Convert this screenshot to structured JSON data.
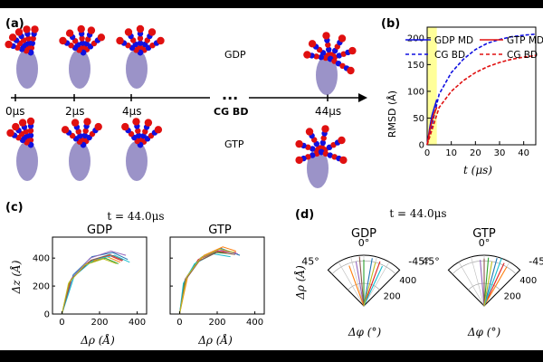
{
  "panel_labels": {
    "a": "(a)",
    "b": "(b)",
    "c": "(c)",
    "d": "(d)"
  },
  "timeline": {
    "ticks": [
      "0μs",
      "2μs",
      "4μs",
      "44μs"
    ],
    "break": "...",
    "break_label": "CG BD",
    "row_labels": [
      "GDP",
      "GTP"
    ]
  },
  "colors": {
    "blue": "#1010e0",
    "red": "#e01010",
    "highlight": "#ffff99"
  },
  "chart_data": [
    {
      "type": "line",
      "ylabel": "RMSD (Å)",
      "xlabel": "t (μs)",
      "xlim": [
        0,
        45
      ],
      "ylim": [
        0,
        220
      ],
      "x_ticks": [
        "0",
        "10",
        "20",
        "30",
        "40"
      ],
      "y_ticks": [
        "0",
        "50",
        "100",
        "150",
        "200"
      ],
      "highlight_x": [
        0,
        4
      ],
      "legend": {
        "row1": [
          "GDP MD",
          "GTP MD"
        ],
        "row2": [
          "CG BD",
          "CG BD"
        ],
        "placement": "top"
      },
      "series": [
        {
          "name": "GDP MD",
          "color": "#1010e0",
          "style": "solid",
          "x": [
            0,
            1,
            2,
            3,
            4
          ],
          "y": [
            0,
            30,
            55,
            70,
            85
          ]
        },
        {
          "name": "CG BD",
          "color": "#1010e0",
          "style": "dashed",
          "x": [
            0,
            5,
            10,
            15,
            20,
            25,
            30,
            35,
            40,
            45
          ],
          "y": [
            0,
            95,
            135,
            160,
            178,
            190,
            197,
            202,
            205,
            207
          ]
        },
        {
          "name": "GTP MD",
          "color": "#e01010",
          "style": "solid",
          "x": [
            0,
            1,
            2,
            3,
            4
          ],
          "y": [
            0,
            25,
            45,
            60,
            70
          ]
        },
        {
          "name": "CG BD",
          "color": "#e01010",
          "style": "dashed",
          "x": [
            0,
            5,
            10,
            15,
            20,
            25,
            30,
            35,
            40,
            45
          ],
          "y": [
            0,
            70,
            100,
            120,
            135,
            146,
            154,
            160,
            164,
            167
          ]
        }
      ]
    },
    {
      "type": "line",
      "title_prefix": "t = 44.0μs",
      "subtitles": [
        "GDP",
        "GTP"
      ],
      "xlabel": "Δρ (Å)",
      "ylabel": "Δz (Å)",
      "xlim": [
        -50,
        450
      ],
      "ylim": [
        0,
        550
      ],
      "x_ticks": [
        "0",
        "200",
        "400"
      ],
      "y_ticks": [
        "0",
        "200",
        "400"
      ],
      "gdp_curves": [
        [
          [
            0,
            0
          ],
          [
            50,
            250
          ],
          [
            150,
            380
          ],
          [
            250,
            420
          ],
          [
            320,
            380
          ]
        ],
        [
          [
            0,
            0
          ],
          [
            60,
            280
          ],
          [
            160,
            410
          ],
          [
            270,
            440
          ],
          [
            350,
            390
          ]
        ],
        [
          [
            0,
            0
          ],
          [
            40,
            230
          ],
          [
            130,
            360
          ],
          [
            230,
            400
          ],
          [
            300,
            360
          ]
        ],
        [
          [
            0,
            0
          ],
          [
            55,
            260
          ],
          [
            150,
            400
          ],
          [
            260,
            450
          ],
          [
            340,
            420
          ]
        ],
        [
          [
            0,
            0
          ],
          [
            45,
            240
          ],
          [
            140,
            370
          ],
          [
            240,
            410
          ],
          [
            310,
            370
          ]
        ],
        [
          [
            0,
            0
          ],
          [
            65,
            270
          ],
          [
            170,
            390
          ],
          [
            280,
            420
          ],
          [
            360,
            370
          ]
        ],
        [
          [
            0,
            0
          ],
          [
            50,
            250
          ],
          [
            155,
            385
          ],
          [
            255,
            425
          ],
          [
            325,
            385
          ]
        ],
        [
          [
            0,
            0
          ],
          [
            35,
            220
          ],
          [
            120,
            350
          ],
          [
            220,
            395
          ],
          [
            290,
            360
          ]
        ]
      ],
      "gtp_curves": [
        [
          [
            0,
            0
          ],
          [
            30,
            250
          ],
          [
            100,
            390
          ],
          [
            200,
            450
          ],
          [
            300,
            440
          ]
        ],
        [
          [
            0,
            0
          ],
          [
            40,
            270
          ],
          [
            120,
            410
          ],
          [
            220,
            470
          ],
          [
            320,
            420
          ]
        ],
        [
          [
            0,
            0
          ],
          [
            25,
            230
          ],
          [
            90,
            370
          ],
          [
            190,
            440
          ],
          [
            280,
            430
          ]
        ],
        [
          [
            0,
            0
          ],
          [
            35,
            260
          ],
          [
            110,
            400
          ],
          [
            210,
            460
          ],
          [
            310,
            430
          ]
        ],
        [
          [
            0,
            0
          ],
          [
            45,
            280
          ],
          [
            130,
            420
          ],
          [
            230,
            480
          ],
          [
            300,
            450
          ]
        ],
        [
          [
            0,
            0
          ],
          [
            20,
            220
          ],
          [
            80,
            360
          ],
          [
            180,
            430
          ],
          [
            270,
            410
          ]
        ],
        [
          [
            0,
            0
          ],
          [
            30,
            240
          ],
          [
            105,
            380
          ],
          [
            205,
            445
          ],
          [
            295,
            425
          ]
        ],
        [
          [
            0,
            0
          ],
          [
            38,
            265
          ],
          [
            115,
            405
          ],
          [
            215,
            465
          ],
          [
            290,
            440
          ]
        ]
      ],
      "curve_colors": [
        "#e02020",
        "#1f77b4",
        "#2ca02c",
        "#9467bd",
        "#ff7f0e",
        "#17becf",
        "#8c564b",
        "#bcbd22"
      ]
    },
    {
      "type": "polar",
      "title_prefix": "t = 44.0μs",
      "subtitles": [
        "GDP",
        "GTP"
      ],
      "angle_labels": [
        "45°",
        "0°",
        "-45°"
      ],
      "radial_ticks": [
        "200",
        "400"
      ],
      "radial_label": "Δρ (Å)",
      "angle_axis_label": "Δφ (°)",
      "rmax": 450,
      "gdp_rays": [
        {
          "angle": -20,
          "r": 420
        },
        {
          "angle": -10,
          "r": 430
        },
        {
          "angle": 0,
          "r": 410
        },
        {
          "angle": 10,
          "r": 400
        },
        {
          "angle": 20,
          "r": 380
        },
        {
          "angle": -25,
          "r": 390
        },
        {
          "angle": 5,
          "r": 440
        },
        {
          "angle": -15,
          "r": 400
        }
      ],
      "gtp_rays": [
        {
          "angle": -25,
          "r": 420
        },
        {
          "angle": -15,
          "r": 440
        },
        {
          "angle": -5,
          "r": 430
        },
        {
          "angle": 5,
          "r": 410
        },
        {
          "angle": -30,
          "r": 400
        },
        {
          "angle": -20,
          "r": 450
        },
        {
          "angle": 0,
          "r": 420
        },
        {
          "angle": -10,
          "r": 400
        }
      ]
    }
  ]
}
